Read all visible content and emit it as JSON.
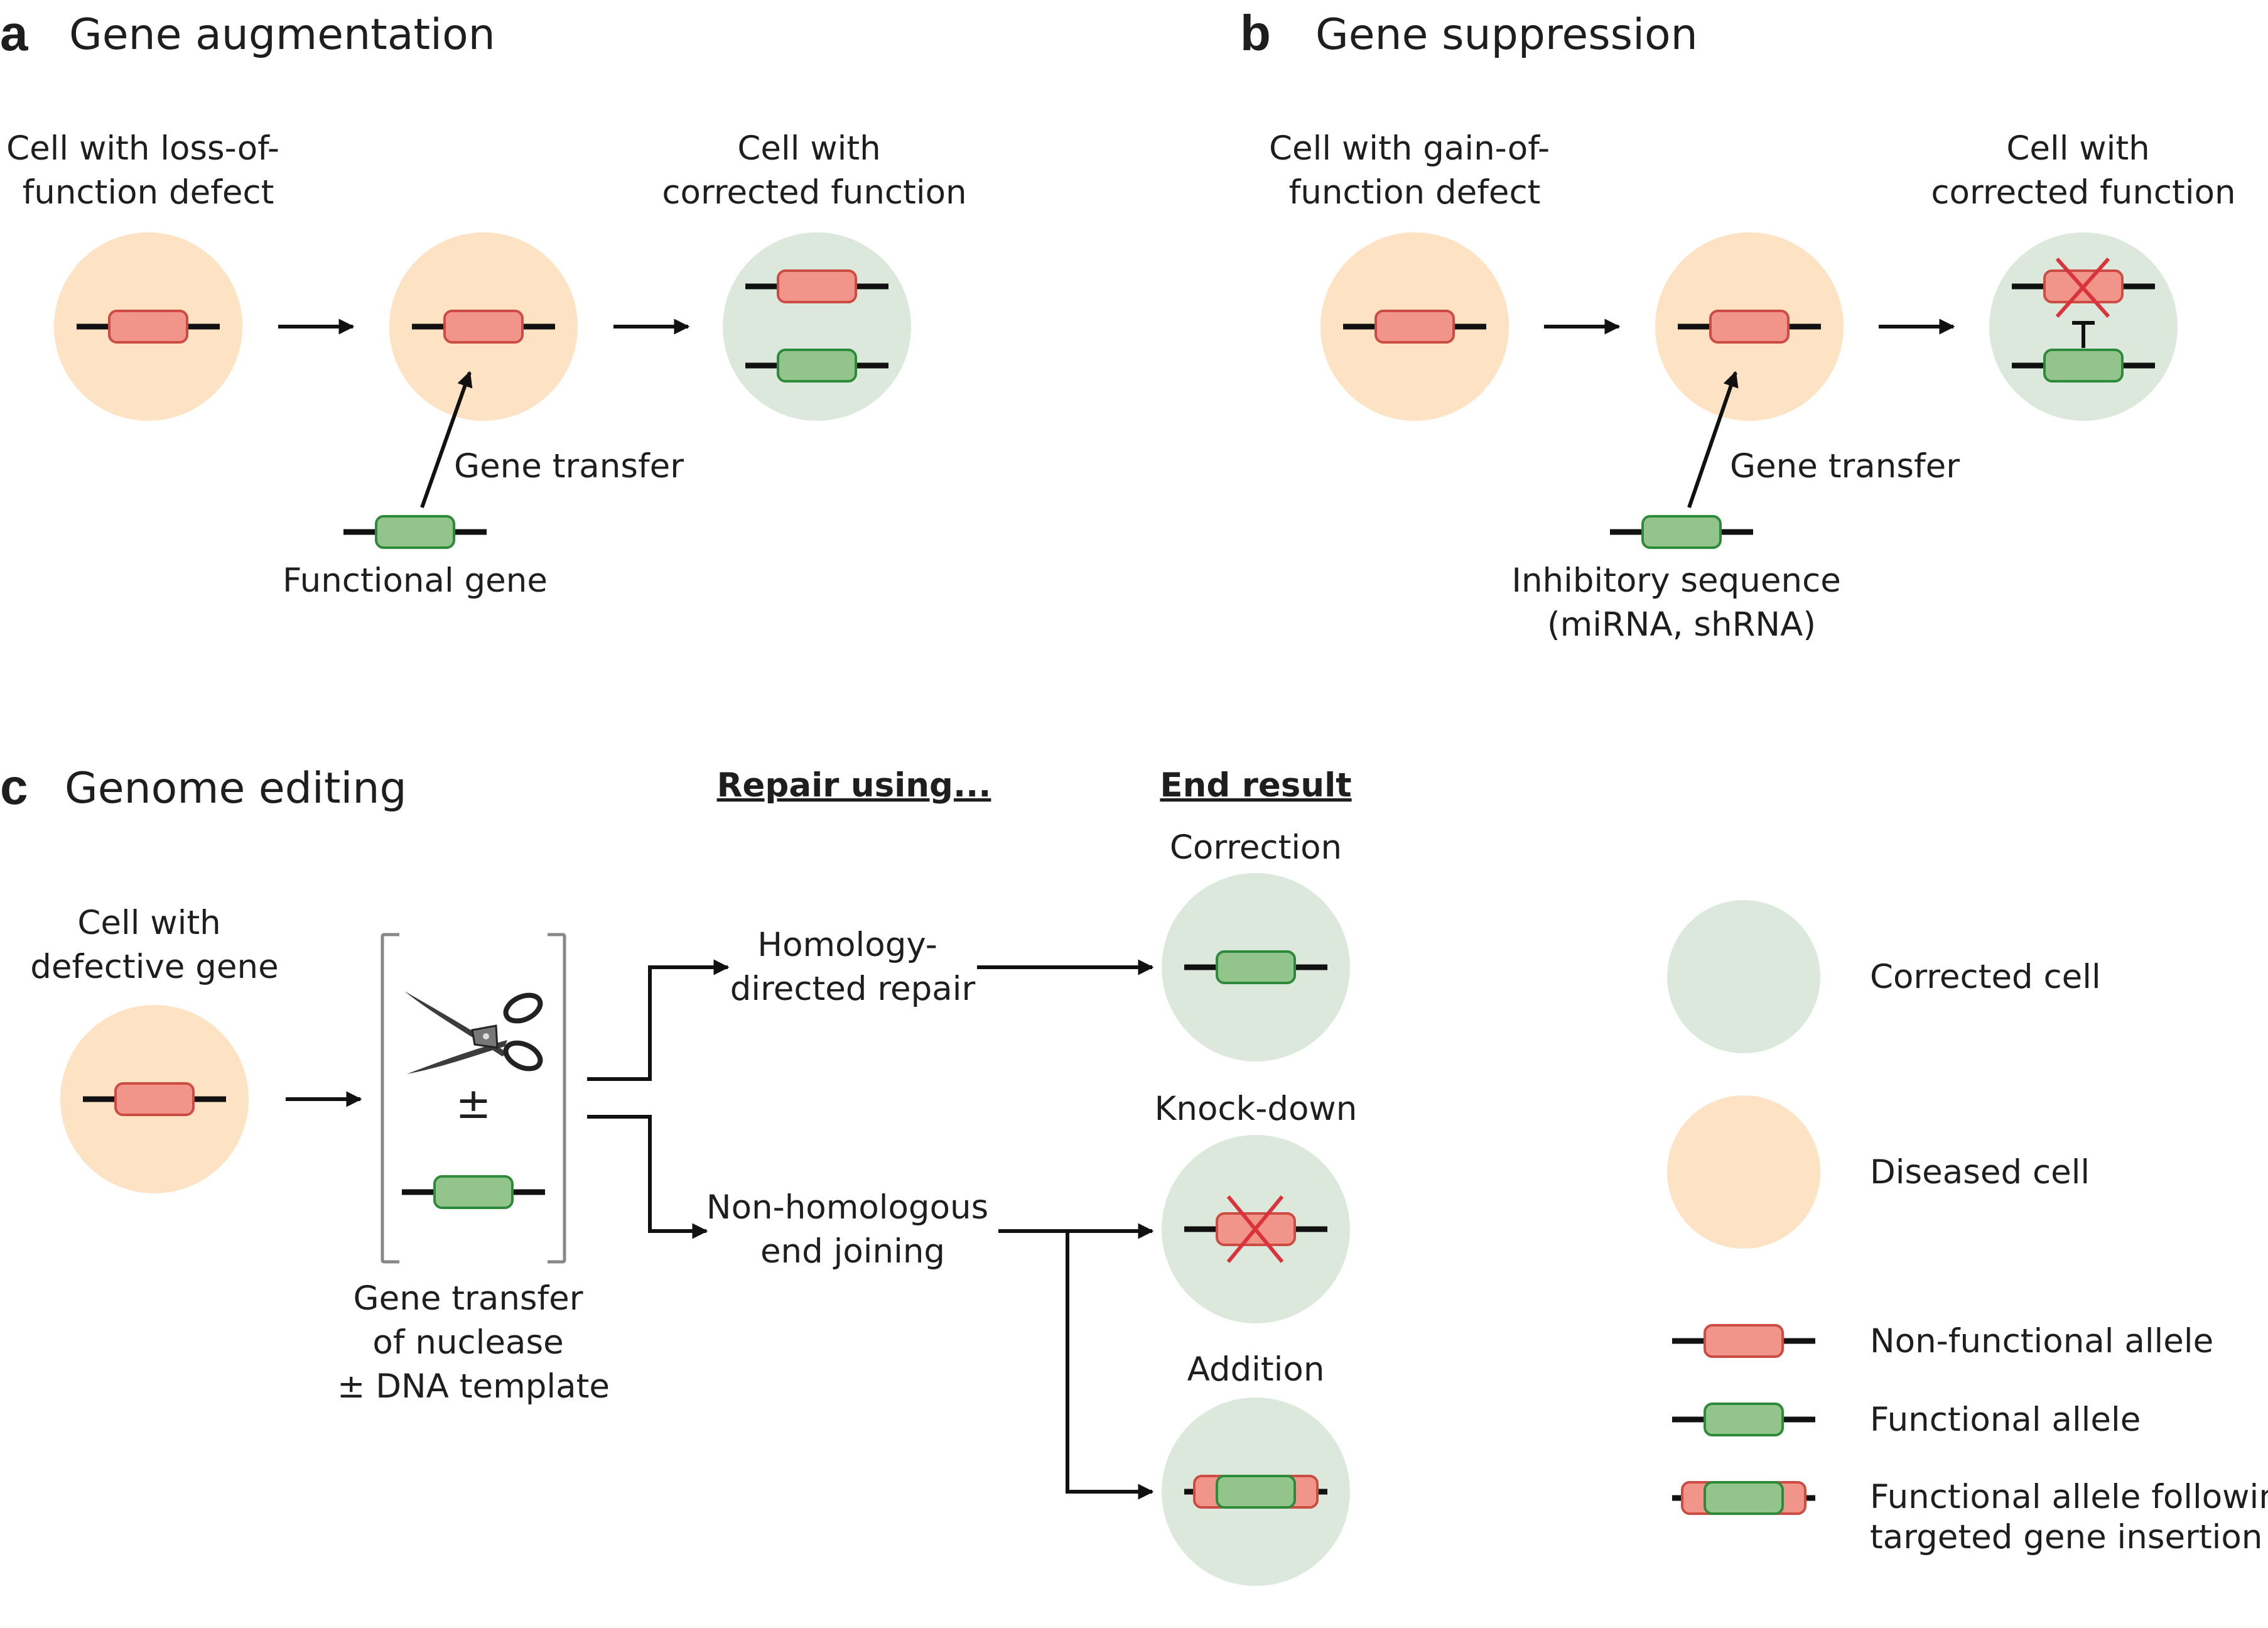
{
  "panel_a": {
    "letter": "a",
    "title": "Gene augmentation",
    "cell_start_label": [
      "Cell with loss-of-",
      "function defect"
    ],
    "cell_end_label": [
      "Cell with",
      "corrected function"
    ],
    "transfer_label": "Gene transfer",
    "vector_label": "Functional gene"
  },
  "panel_b": {
    "letter": "b",
    "title": "Gene suppression",
    "cell_start_label": [
      "Cell with gain-of-",
      "function defect"
    ],
    "cell_end_label": [
      "Cell with",
      "corrected function"
    ],
    "transfer_label": "Gene transfer",
    "vector_label": [
      "Inhibitory sequence",
      "(miRNA, shRNA)"
    ]
  },
  "panel_c": {
    "letter": "c",
    "title": "Genome editing",
    "repair_heading": "Repair using...",
    "result_heading": "End result",
    "cell_start_label": [
      "Cell with",
      "defective gene"
    ],
    "plus_minus": "±",
    "transfer_label": [
      "Gene transfer",
      "of nuclease",
      "± DNA template"
    ],
    "hdr_label": [
      "Homology-",
      "directed repair"
    ],
    "nhej_label": [
      "Non-homologous",
      "end joining"
    ],
    "results": [
      "Correction",
      "Knock-down",
      "Addition"
    ]
  },
  "legend": {
    "corrected_cell": "Corrected cell",
    "diseased_cell": "Diseased cell",
    "nonfunctional_allele": "Non-functional allele",
    "functional_allele": "Functional allele",
    "insertion_allele": [
      "Functional allele following",
      "targeted gene insertion"
    ]
  },
  "colors": {
    "diseased_cell": "#fde3c3",
    "corrected_cell": "#dde8dc",
    "nonfunctional_allele": "#f1958a",
    "nonfunctional_stroke": "#cc4b43",
    "functional_allele": "#92c48c",
    "functional_stroke": "#2d8a3a",
    "cross": "#d9343b",
    "line": "#111111"
  }
}
